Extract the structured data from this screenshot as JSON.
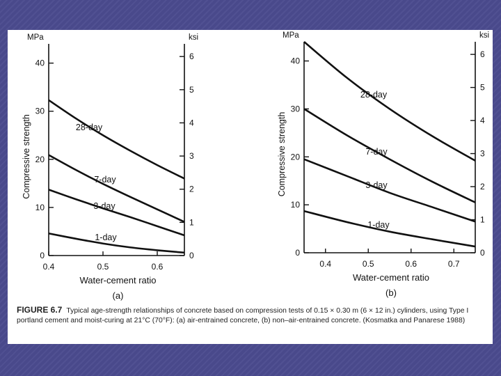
{
  "caption": {
    "figure_label": "FIGURE 6.7",
    "text": "Typical age-strength relationships of concrete based on compression tests of 0.15 × 0.30 m (6 × 12 in.) cylinders, using Type I portland cement and moist-curing at 21°C (70°F): (a) air-entrained concrete, (b) non–air-entrained concrete. (Kosmatka and Panarese 1988)"
  },
  "chart_data": [
    {
      "type": "line",
      "panel_label": "(a)",
      "xlabel": "Water-cement ratio",
      "ylabel": "Compressive strength",
      "y_unit_left": "MPa",
      "y_unit_right": "ksi",
      "xlim": [
        0.4,
        0.65
      ],
      "ylim": [
        0,
        44
      ],
      "x_ticks": [
        0.4,
        0.5,
        0.6
      ],
      "x_tick_labels": [
        "0.4",
        "0.5",
        "0.6"
      ],
      "y_ticks": [
        0,
        10,
        20,
        30,
        40
      ],
      "y_tick_labels": [
        "0",
        "10",
        "20",
        "30",
        "40"
      ],
      "y2_ticks": [
        0,
        1,
        2,
        3,
        4,
        5,
        6
      ],
      "y2_tick_labels": [
        "0",
        "1",
        "2",
        "3",
        "4",
        "5",
        "6"
      ],
      "legend": "none",
      "grid": false,
      "series": [
        {
          "name": "28-day",
          "x": [
            0.4,
            0.45,
            0.5,
            0.55,
            0.6,
            0.65
          ],
          "y": [
            32.3,
            28.5,
            25,
            21.8,
            18.8,
            16
          ]
        },
        {
          "name": "7-day",
          "x": [
            0.4,
            0.45,
            0.5,
            0.55,
            0.6,
            0.65
          ],
          "y": [
            20.9,
            17.8,
            14.9,
            12.2,
            9.6,
            7
          ]
        },
        {
          "name": "3-day",
          "x": [
            0.4,
            0.45,
            0.5,
            0.55,
            0.6,
            0.65
          ],
          "y": [
            13.7,
            11.7,
            9.8,
            8,
            6.1,
            4.2
          ]
        },
        {
          "name": "1-day",
          "x": [
            0.4,
            0.45,
            0.5,
            0.55,
            0.6,
            0.65
          ],
          "y": [
            4.6,
            3.5,
            2.5,
            1.7,
            1.1,
            0.6
          ]
        }
      ]
    },
    {
      "type": "line",
      "panel_label": "(b)",
      "xlabel": "Water-cement ratio",
      "ylabel": "Compressive strength",
      "y_unit_left": "MPa",
      "y_unit_right": "ksi",
      "xlim": [
        0.35,
        0.75
      ],
      "ylim": [
        0,
        44
      ],
      "x_ticks": [
        0.4,
        0.5,
        0.6,
        0.7
      ],
      "x_tick_labels": [
        "0.4",
        "0.5",
        "0.6",
        "0.7"
      ],
      "y_ticks": [
        0,
        10,
        20,
        30,
        40
      ],
      "y_tick_labels": [
        "0",
        "10",
        "20",
        "30",
        "40"
      ],
      "y2_ticks": [
        0,
        1,
        2,
        3,
        4,
        5,
        6
      ],
      "y2_tick_labels": [
        "0",
        "1",
        "2",
        "3",
        "4",
        "5",
        "6"
      ],
      "legend": "none",
      "grid": false,
      "series": [
        {
          "name": "28-day",
          "x": [
            0.35,
            0.45,
            0.55,
            0.65,
            0.75
          ],
          "y": [
            44,
            36.5,
            30,
            24.3,
            19.2
          ]
        },
        {
          "name": "7-day",
          "x": [
            0.35,
            0.45,
            0.55,
            0.65,
            0.75
          ],
          "y": [
            30,
            24.5,
            19.5,
            14.8,
            10.5
          ]
        },
        {
          "name": "3-day",
          "x": [
            0.35,
            0.45,
            0.55,
            0.65,
            0.75
          ],
          "y": [
            19.5,
            16,
            12.5,
            9.5,
            6.5
          ]
        },
        {
          "name": "1-day",
          "x": [
            0.35,
            0.45,
            0.55,
            0.65,
            0.75
          ],
          "y": [
            8.7,
            6.4,
            4.4,
            2.8,
            1.3
          ]
        }
      ]
    }
  ]
}
